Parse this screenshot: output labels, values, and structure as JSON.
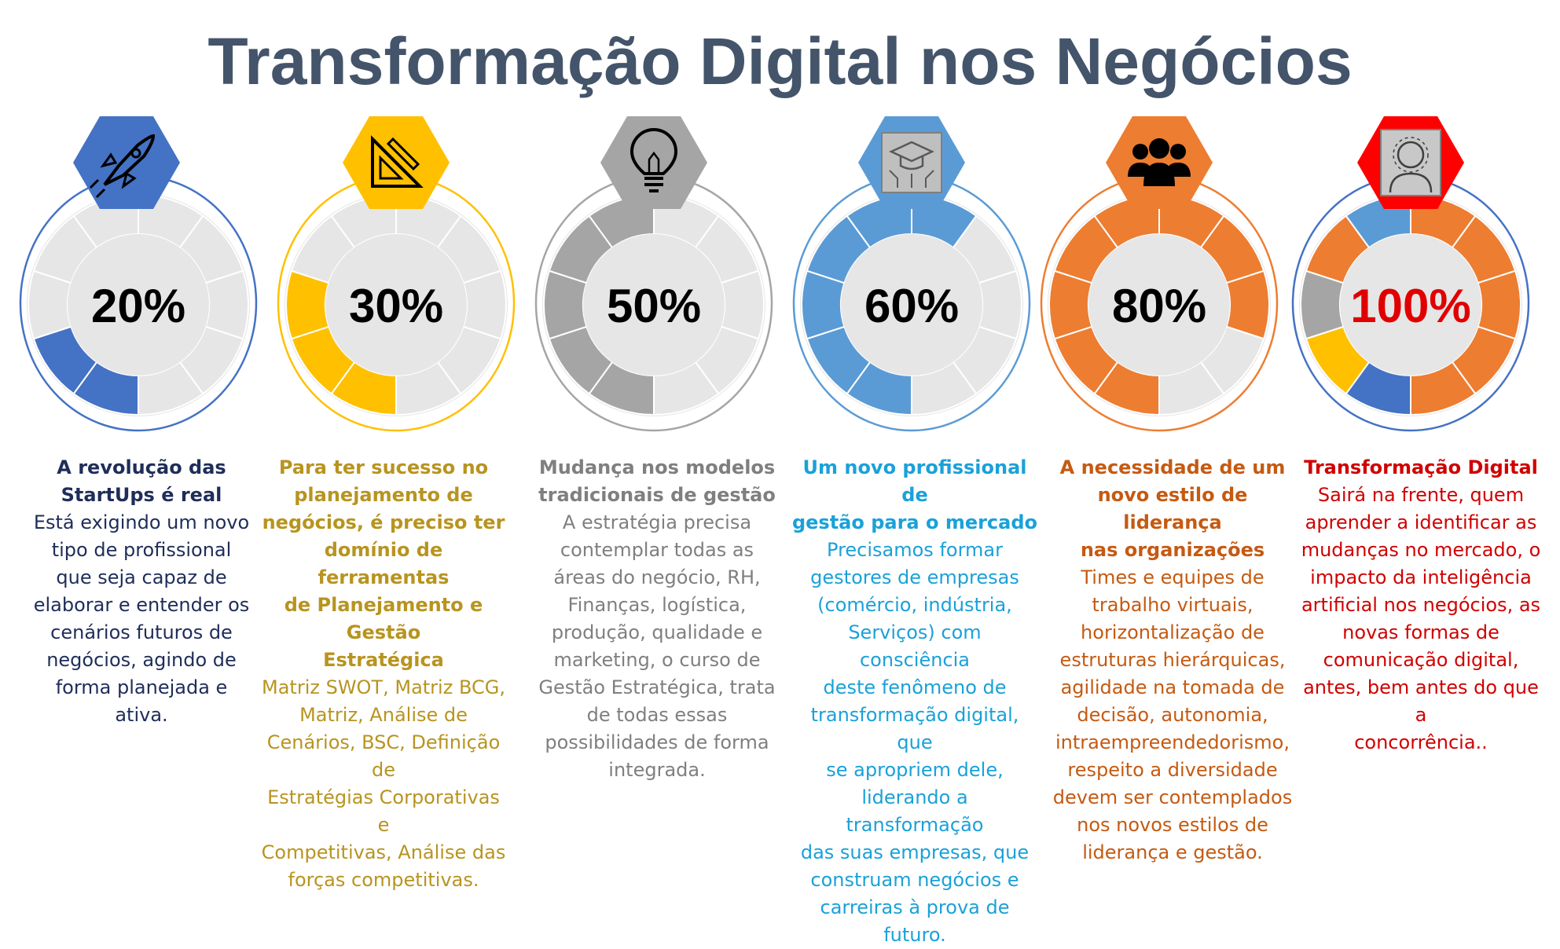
{
  "title": "Transformação Digital nos Negócios",
  "colors": {
    "title": "#44546a",
    "track": "#e6e6e6",
    "blue": "#4472c4",
    "yellow": "#ffc000",
    "gray": "#a5a5a5",
    "lightblue": "#5b9bd5",
    "orange": "#ed7d31",
    "red": "#ff0000"
  },
  "chart_data": [
    {
      "type": "pie",
      "label": "20%",
      "value": 20,
      "icon": "rocket-icon",
      "color": "#4472c4"
    },
    {
      "type": "pie",
      "label": "30%",
      "value": 30,
      "icon": "drafting-tools-icon",
      "color": "#ffc000"
    },
    {
      "type": "pie",
      "label": "50%",
      "value": 50,
      "icon": "lightbulb-icon",
      "color": "#a5a5a5"
    },
    {
      "type": "pie",
      "label": "60%",
      "value": 60,
      "icon": "circuit-graduation-icon",
      "color": "#5b9bd5"
    },
    {
      "type": "pie",
      "label": "80%",
      "value": 80,
      "icon": "team-icon",
      "color": "#ed7d31"
    },
    {
      "type": "pie",
      "label": "100%",
      "value": 100,
      "icon": "digital-person-icon",
      "color": "#ff0000",
      "segment_colors": [
        "#4472c4",
        "#ffc000",
        "#a5a5a5",
        "#ed7d31",
        "#5b9bd5",
        "#ed7d31",
        "#ed7d31",
        "#ed7d31",
        "#ed7d31",
        "#ed7d31"
      ]
    }
  ],
  "columns": [
    {
      "heading": [
        "A revolução das",
        "StartUps é real"
      ],
      "body": [
        "Está exigindo um novo",
        "tipo de profissional",
        "que seja capaz de",
        "elaborar e entender os",
        "cenários futuros de",
        "negócios, agindo de",
        "forma planejada e",
        "ativa."
      ],
      "color": "#1f2d5a"
    },
    {
      "heading": [
        "Para ter sucesso no",
        "planejamento de",
        "negócios, é preciso ter",
        "domínio de ferramentas",
        "de Planejamento e Gestão",
        "Estratégica"
      ],
      "body": [
        "Matriz SWOT, Matriz BCG,",
        "Matriz, Análise de",
        "Cenários, BSC, Definição de",
        "Estratégias Corporativas e",
        "Competitivas, Análise das",
        "forças competitivas."
      ],
      "color": "#b8941f"
    },
    {
      "heading": [
        "Mudança nos modelos",
        "tradicionais de gestão"
      ],
      "body": [
        "A estratégia precisa",
        "contemplar todas as",
        "áreas do negócio, RH,",
        "Finanças, logística,",
        "produção, qualidade e",
        "marketing, o curso de",
        "Gestão Estratégica, trata",
        "de todas essas",
        "possibilidades de forma",
        "integrada."
      ],
      "color": "#7f7f7f"
    },
    {
      "heading": [
        "Um novo profissional de",
        "gestão para o mercado"
      ],
      "body": [
        "Precisamos formar",
        "gestores de empresas",
        "(comércio, indústria,",
        "Serviços) com consciência",
        "deste fenômeno de",
        "transformação digital, que",
        "se apropriem dele,",
        "liderando a transformação",
        "das suas empresas, que",
        "construam negócios e",
        "carreiras à prova de",
        "futuro."
      ],
      "color": "#1aa1d9"
    },
    {
      "heading": [
        "A necessidade de um",
        "novo estilo de liderança",
        "nas organizações"
      ],
      "body": [
        "Times e equipes de",
        "trabalho virtuais,",
        "horizontalização de",
        "estruturas hierárquicas,",
        "agilidade na tomada de",
        "decisão, autonomia,",
        "intraempreendedorismo,",
        "respeito a diversidade",
        "devem ser contemplados",
        "nos novos estilos de",
        "liderança e gestão."
      ],
      "color": "#c55a11"
    },
    {
      "heading": [
        "Transformação Digital"
      ],
      "body": [
        "Sairá na frente, quem",
        "aprender a identificar as",
        "mudanças no mercado, o",
        "impacto da inteligência",
        "artificial nos negócios, as",
        "novas formas de",
        "comunicação digital,",
        "antes, bem antes do que a",
        "concorrência.."
      ],
      "color": "#d00000"
    }
  ]
}
